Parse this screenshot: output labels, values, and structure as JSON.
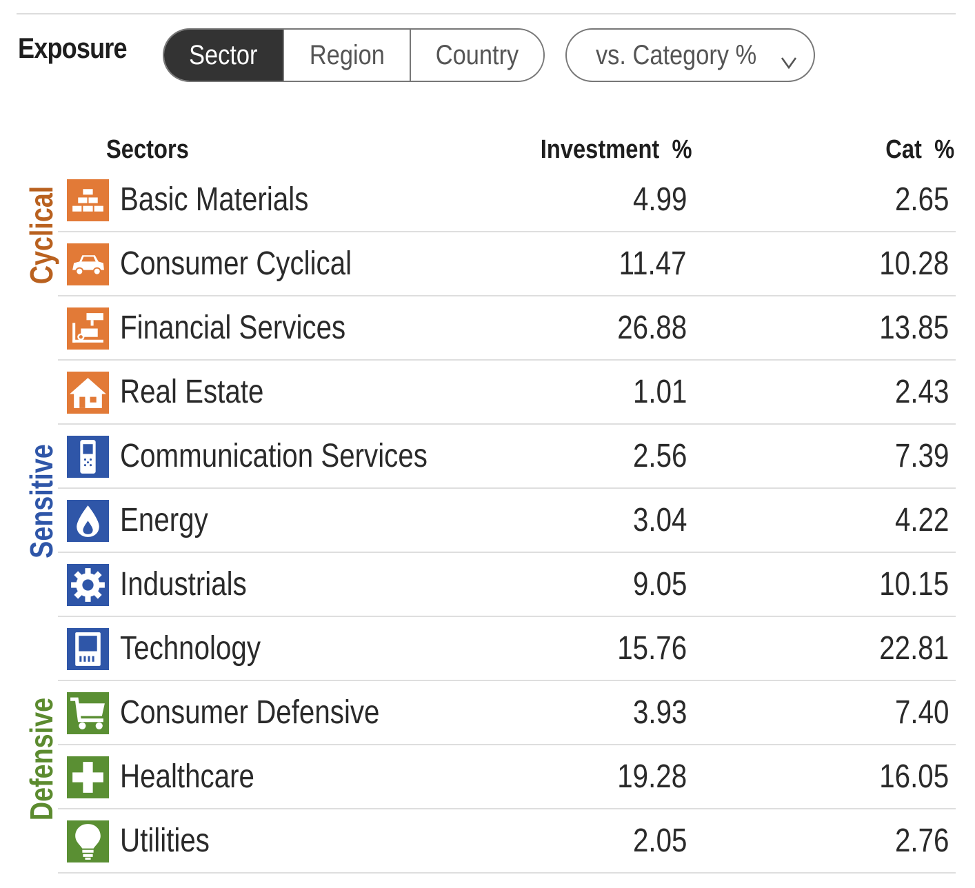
{
  "header": {
    "title": "Exposure"
  },
  "tabs": [
    {
      "label": "Sector",
      "active": true
    },
    {
      "label": "Region",
      "active": false
    },
    {
      "label": "Country",
      "active": false
    }
  ],
  "comparison_dropdown": {
    "label": "vs. Category %",
    "icon": "chevron-down-icon"
  },
  "table": {
    "columns": {
      "sectors": "Sectors",
      "investment": "Investment  %",
      "category": "Cat  %"
    },
    "groups": [
      {
        "label": "Cyclical",
        "color": "#b9611f"
      },
      {
        "label": "Sensitive",
        "color": "#2f56a8"
      },
      {
        "label": "Defensive",
        "color": "#5c8b2f"
      }
    ],
    "rows": [
      {
        "name": "Basic Materials",
        "investment": "4.99",
        "category": "2.65",
        "icon": "gold-bars-icon",
        "icon_color": "#e27a37"
      },
      {
        "name": "Consumer Cyclical",
        "investment": "11.47",
        "category": "10.28",
        "icon": "car-icon",
        "icon_color": "#e27a37"
      },
      {
        "name": "Financial Services",
        "investment": "26.88",
        "category": "13.85",
        "icon": "financial-services-icon",
        "icon_color": "#e27a37"
      },
      {
        "name": "Real Estate",
        "investment": "1.01",
        "category": "2.43",
        "icon": "house-icon",
        "icon_color": "#e27a37"
      },
      {
        "name": "Communication Services",
        "investment": "2.56",
        "category": "7.39",
        "icon": "phone-icon",
        "icon_color": "#2f56a8"
      },
      {
        "name": "Energy",
        "investment": "3.04",
        "category": "4.22",
        "icon": "flame-icon",
        "icon_color": "#2f56a8"
      },
      {
        "name": "Industrials",
        "investment": "9.05",
        "category": "10.15",
        "icon": "gear-icon",
        "icon_color": "#2f56a8"
      },
      {
        "name": "Technology",
        "investment": "15.76",
        "category": "22.81",
        "icon": "computer-icon",
        "icon_color": "#2f56a8"
      },
      {
        "name": "Consumer Defensive",
        "investment": "3.93",
        "category": "7.40",
        "icon": "shopping-cart-icon",
        "icon_color": "#5a8f33"
      },
      {
        "name": "Healthcare",
        "investment": "19.28",
        "category": "16.05",
        "icon": "medical-cross-icon",
        "icon_color": "#5a8f33"
      },
      {
        "name": "Utilities",
        "investment": "2.05",
        "category": "2.76",
        "icon": "lightbulb-icon",
        "icon_color": "#5a8f33"
      }
    ]
  }
}
